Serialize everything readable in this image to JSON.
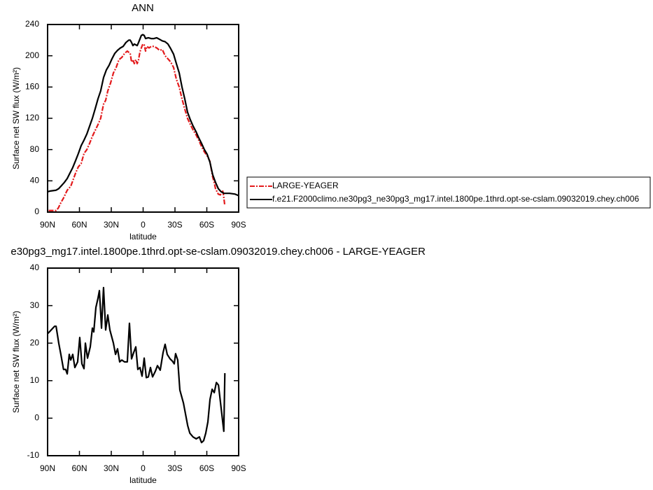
{
  "chart_data": [
    {
      "type": "line",
      "title": "ANN",
      "xlabel": "latitude",
      "ylabel": "Surface net SW flux (W/m²)",
      "xlim": [
        90,
        -90
      ],
      "xticks": [
        {
          "value": 90,
          "label": "90N"
        },
        {
          "value": 60,
          "label": "60N"
        },
        {
          "value": 30,
          "label": "30N"
        },
        0,
        {
          "value": -30,
          "label": "30S"
        },
        {
          "value": -60,
          "label": "60S"
        },
        {
          "value": -90,
          "label": "90S"
        }
      ],
      "ylim": [
        0,
        240
      ],
      "yticks": [
        0,
        40,
        80,
        120,
        160,
        200,
        240
      ],
      "grid": false,
      "legend": "right",
      "series": [
        {
          "name": "LARGE-YEAGER",
          "color": "#e31a1c",
          "line_style": "dashed",
          "x": [
            89,
            82,
            80,
            77.5,
            75,
            71.5,
            68.2,
            66.3,
            63.6,
            61,
            58.4,
            55.7,
            53,
            50.4,
            47.8,
            45,
            42.5,
            40,
            37.3,
            35.3,
            33.3,
            30.7,
            28,
            25.4,
            22.8,
            20,
            17.5,
            14.9,
            12.2,
            10.9,
            9.6,
            8.3,
            6.9,
            5.6,
            4.3,
            3,
            1.7,
            0.3,
            -1,
            -2.3,
            -3.6,
            -5.6,
            -7.6,
            -10.2,
            -12.8,
            -15.5,
            -18.1,
            -20.7,
            -23.4,
            -26,
            -28.7,
            -31.3,
            -34,
            -36.6,
            -39.2,
            -41.8,
            -44.5,
            -47.1,
            -49.8,
            -52.4,
            -55,
            -57.7,
            -60.3,
            -62.9,
            -64.2,
            -65.5,
            -66.9,
            -68.2,
            -70.8,
            -72.8,
            -74.8,
            -75.5,
            -76.8
          ],
          "values": [
            2,
            2,
            5,
            12,
            18,
            28,
            33,
            40,
            50,
            58,
            62,
            75,
            80,
            88,
            97,
            105,
            112,
            120,
            138,
            143,
            155,
            165,
            178,
            185,
            195,
            198,
            203,
            206,
            203,
            192,
            195,
            190,
            195,
            190,
            195,
            205,
            210,
            215,
            214,
            206,
            212,
            210,
            212,
            212,
            210,
            207,
            208,
            200,
            196,
            192,
            185,
            170,
            160,
            145,
            132,
            120,
            112,
            105,
            99,
            92,
            84,
            77,
            72,
            65,
            55,
            45,
            38,
            30,
            23,
            22,
            28,
            24,
            10
          ]
        },
        {
          "name": "f.e21.F2000climo.ne30pg3_ne30pg3_mg17.intel.1800pe.1thrd.opt-se-cslam.09032019.chey.ch006",
          "color": "#000000",
          "line_style": "solid",
          "x": [
            90,
            87.4,
            82,
            79.5,
            76.8,
            74.2,
            71.5,
            68.9,
            66.3,
            63.6,
            61,
            58.4,
            55.7,
            53,
            50.4,
            47.8,
            45.2,
            42.5,
            40,
            37.3,
            34.6,
            32,
            29.4,
            26.7,
            24.1,
            21.4,
            18.8,
            16.2,
            13.5,
            12.2,
            10.9,
            9.6,
            8.3,
            5.6,
            4.3,
            1.7,
            0.3,
            -1,
            -2.3,
            -4.9,
            -7.6,
            -10.2,
            -12.8,
            -15.5,
            -18.1,
            -20.7,
            -23.4,
            -26,
            -28.7,
            -31.3,
            -34,
            -36.6,
            -39.2,
            -41.8,
            -44.5,
            -47.1,
            -49.8,
            -52.4,
            -55,
            -57.7,
            -60.3,
            -62.9,
            -64.2,
            -65.5,
            -68.2,
            -70.8,
            -73.5,
            -76.1,
            -81.4,
            -86.7,
            -90
          ],
          "values": [
            26,
            27,
            28,
            30,
            34,
            38,
            43,
            50,
            57,
            66,
            75,
            85,
            92,
            100,
            110,
            120,
            132,
            145,
            155,
            172,
            182,
            188,
            196,
            203,
            207,
            210,
            212,
            217,
            220,
            220,
            217,
            213,
            215,
            213,
            217,
            226,
            227,
            226,
            222,
            223,
            222,
            222,
            223,
            221,
            219,
            218,
            215,
            209,
            202,
            190,
            178,
            160,
            145,
            128,
            118,
            110,
            103,
            95,
            88,
            80,
            74,
            64,
            56,
            48,
            38,
            30,
            26,
            24,
            24,
            23,
            21
          ]
        }
      ]
    },
    {
      "type": "line",
      "title": "e30pg3_mg17.intel.1800pe.1thrd.opt-se-cslam.09032019.chey.ch006 - LARGE-YEAGER",
      "xlabel": "latitude",
      "ylabel": "Surface net SW flux (W/m²)",
      "xlim": [
        90,
        -90
      ],
      "xticks": [
        {
          "value": 90,
          "label": "90N"
        },
        {
          "value": 60,
          "label": "60N"
        },
        {
          "value": 30,
          "label": "30N"
        },
        0,
        {
          "value": -30,
          "label": "30S"
        },
        {
          "value": -60,
          "label": "60S"
        },
        {
          "value": -90,
          "label": "90S"
        }
      ],
      "ylim": [
        -10,
        40
      ],
      "yticks": [
        -10,
        0,
        10,
        20,
        30,
        40
      ],
      "grid": false,
      "series": [
        {
          "color": "#000000",
          "line_style": "solid",
          "x": [
            90,
            86.7,
            83.4,
            82,
            79.5,
            77.5,
            75,
            73,
            71.5,
            69.6,
            68.2,
            66.3,
            64.3,
            61.7,
            59.7,
            57.7,
            55.7,
            54.4,
            52.4,
            49.8,
            47.8,
            46.5,
            44.5,
            42.5,
            41.2,
            39.2,
            37.3,
            35.3,
            33.3,
            31.3,
            28,
            26,
            24.1,
            22.1,
            20.1,
            17.5,
            14.9,
            12.9,
            10.9,
            8.9,
            6.9,
            5,
            3,
            1,
            -1,
            -3,
            -4.9,
            -6.9,
            -8.9,
            -11.5,
            -13.5,
            -16.1,
            -18.8,
            -20.7,
            -22.7,
            -25.4,
            -27.3,
            -29.3,
            -30.6,
            -32.6,
            -34.6,
            -38,
            -40,
            -42,
            -44,
            -47,
            -50,
            -53,
            -55,
            -57,
            -59,
            -61,
            -63,
            -65,
            -67,
            -69,
            -71,
            -76,
            -77
          ],
          "values": [
            22.5,
            23.5,
            24.5,
            24.5,
            20,
            17,
            13,
            13,
            11.8,
            17,
            15.5,
            17,
            13.5,
            15,
            21.5,
            14.5,
            13.2,
            20,
            16,
            19,
            24,
            23,
            29.5,
            32,
            34,
            24,
            34.8,
            23.5,
            27.5,
            23.5,
            20,
            17,
            18.5,
            15,
            15.5,
            15,
            15,
            25.3,
            15.8,
            17.5,
            19,
            13,
            13.5,
            11.2,
            16,
            10.8,
            11,
            13.5,
            11,
            12.5,
            14,
            12.8,
            17.5,
            19.7,
            17,
            15.8,
            15.3,
            14.5,
            17.2,
            15.5,
            7.5,
            4,
            1,
            -2,
            -4,
            -5,
            -5.5,
            -5,
            -6.5,
            -6,
            -4,
            -1,
            5,
            7.7,
            6.8,
            9.5,
            8.8,
            -3.5,
            12
          ]
        }
      ]
    }
  ]
}
